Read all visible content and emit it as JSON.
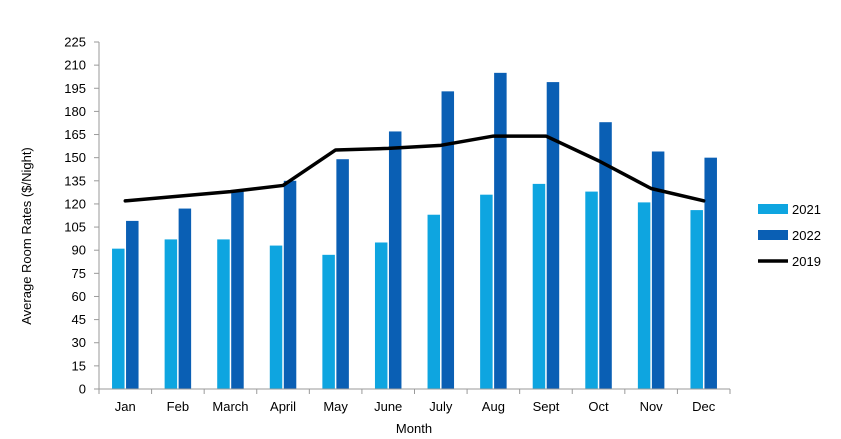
{
  "chart_data": {
    "type": "bar",
    "title": "",
    "xlabel": "Month",
    "ylabel": "Average Room Rates ($/Night)",
    "ylim": [
      0,
      225
    ],
    "yticks": [
      0,
      15,
      30,
      45,
      60,
      75,
      90,
      105,
      120,
      135,
      150,
      165,
      180,
      195,
      210,
      225
    ],
    "grid": false,
    "categories": [
      "Jan",
      "Feb",
      "March",
      "April",
      "May",
      "June",
      "July",
      "Aug",
      "Sept",
      "Oct",
      "Nov",
      "Dec"
    ],
    "series": [
      {
        "name": "2021",
        "kind": "bar",
        "color": "#0ea5e0",
        "values": [
          91,
          97,
          97,
          93,
          87,
          95,
          113,
          126,
          133,
          128,
          121,
          116
        ]
      },
      {
        "name": "2022",
        "kind": "bar",
        "color": "#0a5fb4",
        "values": [
          109,
          117,
          128,
          135,
          149,
          167,
          193,
          205,
          199,
          173,
          154,
          150
        ]
      },
      {
        "name": "2019",
        "kind": "line",
        "color": "#000000",
        "values": [
          122,
          125,
          128,
          132,
          155,
          156,
          158,
          164,
          164,
          148,
          130,
          122
        ]
      }
    ],
    "legend": {
      "position": "right",
      "order": [
        "2021",
        "2022",
        "2019"
      ]
    }
  }
}
